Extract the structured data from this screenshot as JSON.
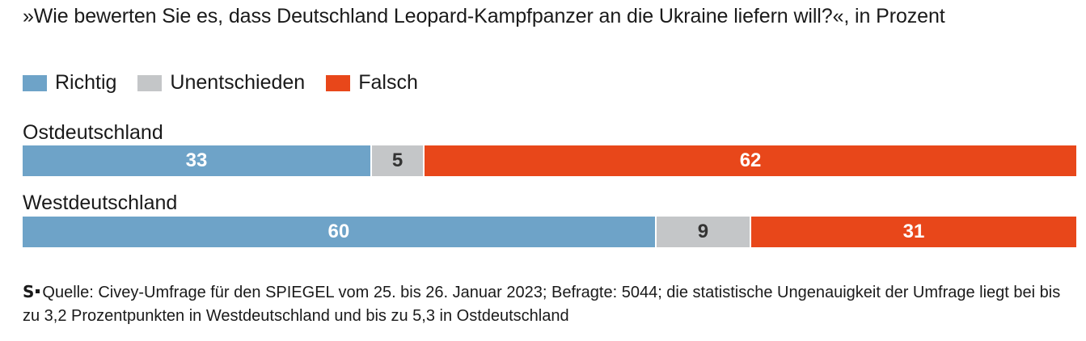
{
  "chart_data": {
    "type": "bar",
    "stacked": true,
    "orientation": "horizontal",
    "title": "»Wie bewerten Sie es, dass Deutschland Leopard-Kampfpanzer an die Ukraine liefern will?«, in Prozent",
    "categories": [
      "Ostdeutschland",
      "Westdeutschland"
    ],
    "series": [
      {
        "name": "Richtig",
        "color": "#6ea3c8",
        "values": [
          33,
          60
        ]
      },
      {
        "name": "Unentschieden",
        "color": "#c4c6c8",
        "values": [
          5,
          9
        ]
      },
      {
        "name": "Falsch",
        "color": "#e8471a",
        "values": [
          62,
          31
        ]
      }
    ],
    "xlim": [
      0,
      100
    ],
    "legend_position": "top-left",
    "grid": false
  },
  "source": {
    "logo": "S",
    "text": "Quelle: Civey-Umfrage für den SPIEGEL vom 25. bis 26. Januar 2023; Befragte: 5044; die statistische Ungenauigkeit der Umfrage liegt bei bis zu 3,2 Prozentpunkten in Westdeutschland und bis zu 5,3 in Ostdeutschland"
  },
  "colors": {
    "label_on_dark": "#ffffff",
    "label_on_light": "#333333"
  }
}
